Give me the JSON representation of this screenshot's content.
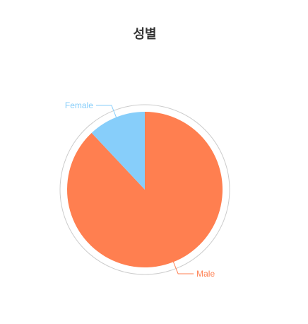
{
  "chart_data": {
    "type": "pie",
    "title": "성별",
    "slices": [
      {
        "label": "Male",
        "value": 88,
        "color": "#ff7f50"
      },
      {
        "label": "Female",
        "value": 12,
        "color": "#87cefa"
      }
    ],
    "outer_ring_color": "#cccccc",
    "label_placement": "outside-with-leader-lines"
  }
}
